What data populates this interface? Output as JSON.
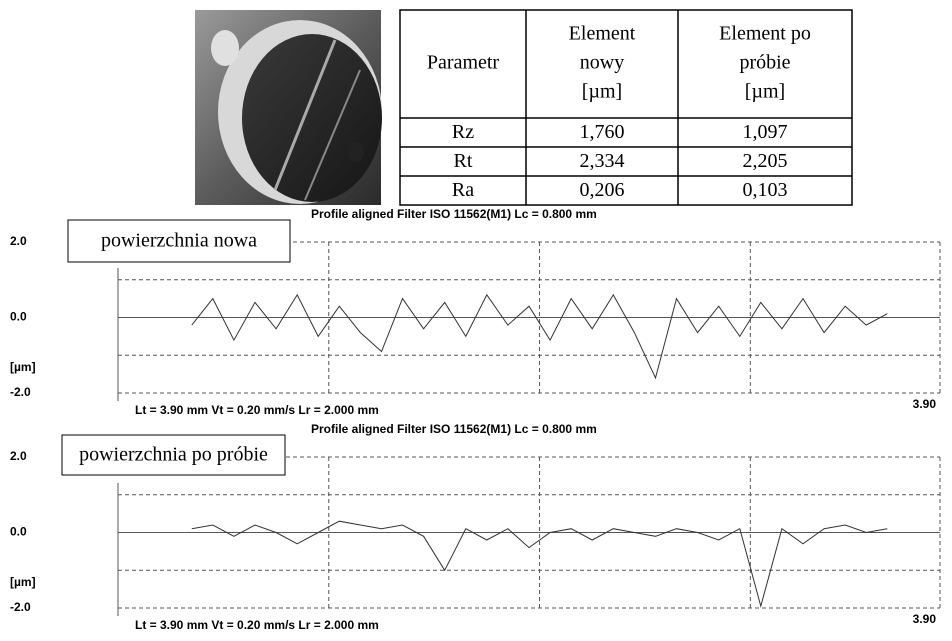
{
  "table": {
    "header": [
      [
        "Parametr"
      ],
      [
        "Element",
        "nowy",
        "[µm]"
      ],
      [
        "Element po",
        "próbie",
        "[µm]"
      ]
    ],
    "rows": [
      [
        "Rz",
        "1,760",
        "1,097"
      ],
      [
        "Rt",
        "2,334",
        "2,205"
      ],
      [
        "Ra",
        "0,206",
        "0,103"
      ]
    ]
  },
  "chart_data": [
    {
      "type": "line",
      "title": "Profile aligned Filter ISO 11562(M1) Lc = 0.800 mm",
      "subtitle": "Lt = 3.90 mm Vt = 0.20 mm/s Lr = 2.000 mm",
      "annotation": "powierzchnia nowa",
      "ylabel": "[µm]",
      "color": "#333333",
      "x": [
        0.35,
        0.45,
        0.55,
        0.65,
        0.75,
        0.85,
        0.95,
        1.05,
        1.15,
        1.25,
        1.35,
        1.45,
        1.55,
        1.65,
        1.75,
        1.85,
        1.95,
        2.05,
        2.15,
        2.25,
        2.35,
        2.45,
        2.55,
        2.65,
        2.75,
        2.85,
        2.95,
        3.05,
        3.15,
        3.25,
        3.35,
        3.45,
        3.55,
        3.65
      ],
      "values": [
        -0.2,
        0.5,
        -0.6,
        0.4,
        -0.3,
        0.6,
        -0.5,
        0.3,
        -0.4,
        -0.9,
        0.5,
        -0.3,
        0.4,
        -0.5,
        0.6,
        -0.2,
        0.3,
        -0.6,
        0.5,
        -0.3,
        0.6,
        -0.4,
        -1.6,
        0.5,
        -0.4,
        0.3,
        -0.5,
        0.4,
        -0.3,
        0.5,
        -0.4,
        0.3,
        -0.2,
        0.1
      ],
      "xlim": [
        0,
        3.9
      ],
      "xticks": [
        {
          "value": 3.9,
          "label": "3.90"
        }
      ],
      "xgrid": [
        1,
        2,
        3
      ],
      "ylim": [
        -2,
        2
      ],
      "yticks": [
        {
          "value": 2,
          "label": "2.0"
        },
        {
          "value": 0,
          "label": "0.0"
        },
        {
          "value": -2,
          "label": "-2.0"
        }
      ],
      "ygrid": [
        -1,
        1
      ]
    },
    {
      "type": "line",
      "title": "Profile aligned Filter ISO 11562(M1) Lc = 0.800 mm",
      "subtitle": "Lt = 3.90 mm Vt = 0.20 mm/s Lr = 2.000 mm",
      "annotation": "powierzchnia po próbie",
      "ylabel": "[µm]",
      "color": "#333333",
      "x": [
        0.35,
        0.45,
        0.55,
        0.65,
        0.75,
        0.85,
        0.95,
        1.05,
        1.15,
        1.25,
        1.35,
        1.45,
        1.55,
        1.65,
        1.75,
        1.85,
        1.95,
        2.05,
        2.15,
        2.25,
        2.35,
        2.45,
        2.55,
        2.65,
        2.75,
        2.85,
        2.95,
        3.05,
        3.15,
        3.25,
        3.35,
        3.45,
        3.55,
        3.65
      ],
      "values": [
        0.1,
        0.2,
        -0.1,
        0.2,
        0.0,
        -0.3,
        0.0,
        0.3,
        0.2,
        0.1,
        0.2,
        -0.1,
        -1.0,
        0.1,
        -0.2,
        0.1,
        -0.4,
        0.0,
        0.1,
        -0.2,
        0.1,
        0.0,
        -0.1,
        0.1,
        0.0,
        -0.2,
        0.1,
        -1.95,
        0.1,
        -0.3,
        0.1,
        0.2,
        0.0,
        0.1
      ],
      "xlim": [
        0,
        3.9
      ],
      "xticks": [
        {
          "value": 3.9,
          "label": "3.90"
        }
      ],
      "xgrid": [
        1,
        2,
        3
      ],
      "ylim": [
        -2,
        2
      ],
      "yticks": [
        {
          "value": 2,
          "label": "2.0"
        },
        {
          "value": 0,
          "label": "0.0"
        },
        {
          "value": -2,
          "label": "-2.0"
        }
      ],
      "ygrid": [
        -1,
        1
      ]
    }
  ]
}
